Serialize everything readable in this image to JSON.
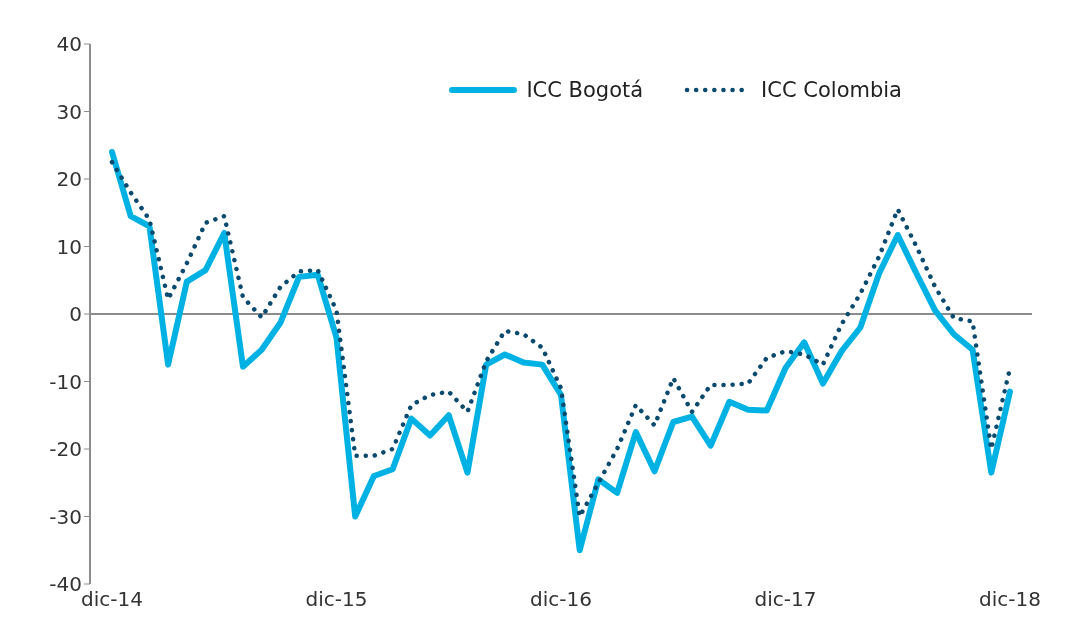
{
  "chart_data": {
    "type": "line",
    "categories": [
      "dic-14",
      null,
      null,
      null,
      null,
      null,
      null,
      null,
      null,
      null,
      null,
      null,
      "dic-15",
      null,
      null,
      null,
      null,
      null,
      null,
      null,
      null,
      null,
      null,
      null,
      "dic-16",
      null,
      null,
      null,
      null,
      null,
      null,
      null,
      null,
      null,
      null,
      null,
      "dic-17",
      null,
      null,
      null,
      null,
      null,
      null,
      null,
      null,
      null,
      null,
      null,
      "dic-18"
    ],
    "series": [
      {
        "name": "ICC Bogotá",
        "color": "#00b2e3",
        "line_style": "solid",
        "values": [
          24,
          14.5,
          13,
          -7.5,
          4.8,
          6.5,
          12,
          -7.8,
          -5.3,
          -1.3,
          5.5,
          5.8,
          -3.5,
          -30,
          -24,
          -23,
          -15.5,
          -18,
          -15,
          -23.5,
          -7.5,
          -6,
          -7.2,
          -7.5,
          -12,
          -35,
          -24.5,
          -26.5,
          -17.5,
          -23.3,
          -16,
          -15.2,
          -19.5,
          -13,
          -14.2,
          -14.3,
          -8,
          -4.2,
          -10.3,
          -5.5,
          -2,
          6,
          11.7,
          6,
          0.5,
          -3,
          -5.3,
          -23.5,
          -11.5
        ]
      },
      {
        "name": "ICC Colombia",
        "color": "#0a4a6e",
        "line_style": "dotted",
        "values": [
          22.5,
          18,
          14,
          2.2,
          7.5,
          13.5,
          14.5,
          2.5,
          -0.5,
          4,
          6.3,
          6.5,
          0.5,
          -21,
          -21,
          -20,
          -13.5,
          -12,
          -11.5,
          -14.5,
          -7,
          -2.5,
          -3,
          -5,
          -11,
          -30,
          -25,
          -20,
          -13.5,
          -16.5,
          -9.5,
          -14.5,
          -10.5,
          -10.5,
          -10.3,
          -6.5,
          -5.5,
          -6,
          -7.5,
          -1.5,
          3,
          8.5,
          15.5,
          10,
          4,
          -0.6,
          -1.1,
          -20,
          -8
        ]
      }
    ],
    "ylim": [
      -40,
      40
    ],
    "yticks": [
      -40,
      -30,
      -20,
      -10,
      0,
      10,
      20,
      30,
      40
    ],
    "ref_lines": [
      {
        "axis": "y",
        "value": 0,
        "color": "#8c8c8c"
      }
    ],
    "grid": false,
    "legend": "top right",
    "marker": "none"
  }
}
